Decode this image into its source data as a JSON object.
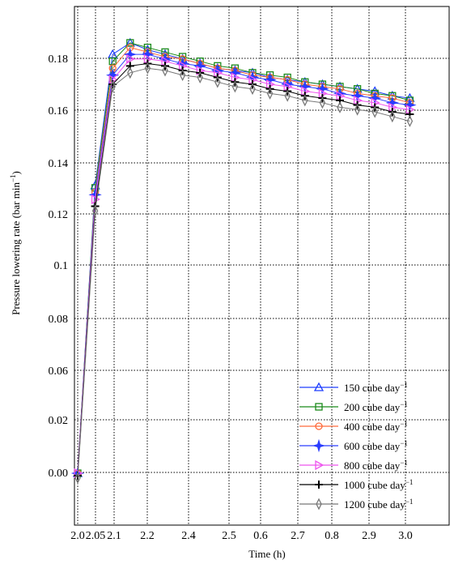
{
  "chart_data": {
    "type": "line",
    "title": "",
    "xlabel": "Time (h)",
    "ylabel": "Pressure lowering rate (bar min",
    "ylabel_sup": "−1",
    "ylabel_close": ")",
    "xtick_labels": [
      "2.0",
      "2.05",
      "2.1",
      "2.2",
      "2.4",
      "2.5",
      "0.6",
      "2.7",
      "0.8",
      "2.9",
      "3.0"
    ],
    "ytick_labels": [
      "0.00",
      "0.02",
      "0.06",
      "0.08",
      "0.1",
      "0.12",
      "0.14",
      "0.16",
      "0.18"
    ],
    "grid": true,
    "legend_position": "lower-right",
    "series": [
      {
        "name": "150 cube day",
        "color": "#1f3fff",
        "marker": "triangle-up",
        "values": [
          0.0,
          0.125,
          0.182,
          0.187,
          0.184,
          0.182,
          0.18,
          0.178,
          0.176,
          0.175,
          0.174,
          0.172,
          0.171,
          0.17,
          0.169,
          0.168,
          0.167,
          0.166,
          0.164,
          0.163
        ]
      },
      {
        "name": "200 cube day",
        "color": "#1a8a1a",
        "marker": "square",
        "values": [
          0.0,
          0.124,
          0.179,
          0.187,
          0.185,
          0.183,
          0.181,
          0.179,
          0.177,
          0.176,
          0.174,
          0.173,
          0.172,
          0.17,
          0.169,
          0.168,
          0.167,
          0.165,
          0.164,
          0.162
        ]
      },
      {
        "name": "400 cube day",
        "color": "#ff6a3a",
        "marker": "circle",
        "values": [
          0.0,
          0.122,
          0.176,
          0.185,
          0.183,
          0.181,
          0.18,
          0.178,
          0.176,
          0.175,
          0.173,
          0.172,
          0.171,
          0.169,
          0.168,
          0.167,
          0.165,
          0.164,
          0.163,
          0.161
        ]
      },
      {
        "name": "600 cube day",
        "color": "#2a3cff",
        "marker": "star",
        "values": [
          0.0,
          0.121,
          0.173,
          0.182,
          0.182,
          0.18,
          0.178,
          0.177,
          0.175,
          0.174,
          0.172,
          0.171,
          0.169,
          0.168,
          0.167,
          0.165,
          0.164,
          0.163,
          0.161,
          0.16
        ]
      },
      {
        "name": "800 cube day",
        "color": "#ee55ee",
        "marker": "triangle-right",
        "values": [
          0.0,
          0.119,
          0.171,
          0.18,
          0.18,
          0.179,
          0.177,
          0.175,
          0.174,
          0.172,
          0.171,
          0.169,
          0.168,
          0.166,
          0.165,
          0.164,
          0.162,
          0.161,
          0.159,
          0.158
        ]
      },
      {
        "name": "1000 cube day",
        "color": "#000000",
        "marker": "plus",
        "values": [
          -0.001,
          0.116,
          0.169,
          0.177,
          0.178,
          0.177,
          0.175,
          0.174,
          0.172,
          0.17,
          0.169,
          0.167,
          0.166,
          0.164,
          0.163,
          0.162,
          0.16,
          0.159,
          0.157,
          0.156
        ]
      },
      {
        "name": "1200 cube day",
        "color": "#777777",
        "marker": "thin-diamond",
        "values": [
          -0.002,
          0.114,
          0.168,
          0.174,
          0.176,
          0.175,
          0.173,
          0.172,
          0.17,
          0.168,
          0.167,
          0.165,
          0.164,
          0.162,
          0.161,
          0.159,
          0.158,
          0.157,
          0.155,
          0.153
        ]
      }
    ],
    "legend_suffix": "−1"
  }
}
